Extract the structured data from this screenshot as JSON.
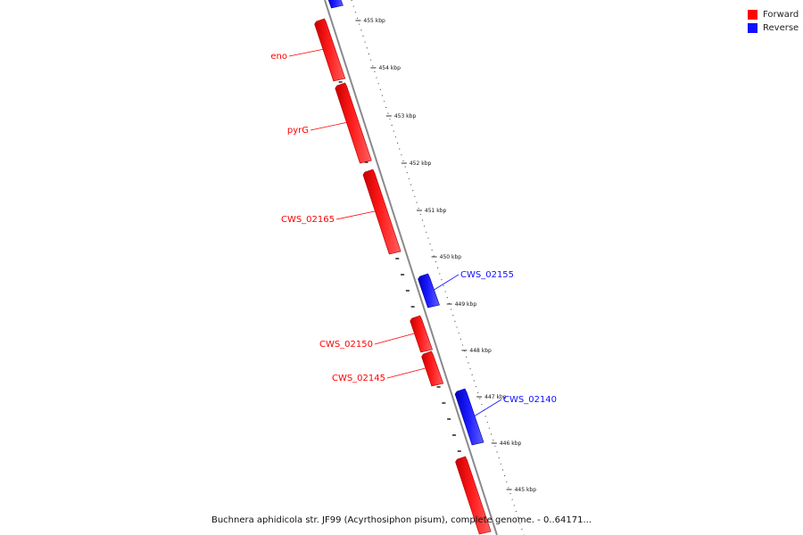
{
  "legend": {
    "forward_label": "Forward",
    "reverse_label": "Reverse",
    "forward_color": "#ff0000",
    "reverse_color": "#1010ff"
  },
  "caption": "Buchnera aphidicola str. JF99 (Acyrthosiphon pisum), complete genome. - 0..64171...",
  "scale_ticks": [
    "455 kbp",
    "454 kbp",
    "453 kbp",
    "452 kbp",
    "451 kbp",
    "450 kbp",
    "449 kbp",
    "448 kbp",
    "447 kbp",
    "446 kbp",
    "445 kbp"
  ],
  "genes": [
    {
      "name": "eno",
      "strand": "forward"
    },
    {
      "name": "pyrG",
      "strand": "forward"
    },
    {
      "name": "CWS_02165",
      "strand": "forward"
    },
    {
      "name": "CWS_02155",
      "strand": "reverse"
    },
    {
      "name": "CWS_02150",
      "strand": "forward"
    },
    {
      "name": "CWS_02145",
      "strand": "forward"
    },
    {
      "name": "CWS_02140",
      "strand": "reverse"
    },
    {
      "name": "",
      "strand": "forward"
    },
    {
      "name": "",
      "strand": "reverse"
    }
  ]
}
